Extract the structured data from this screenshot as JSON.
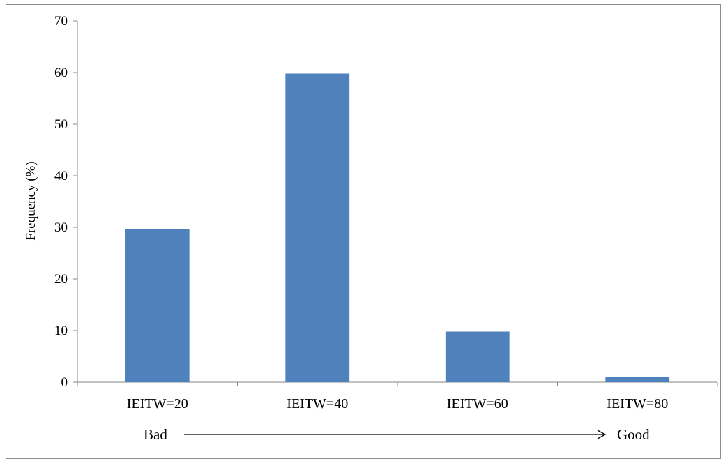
{
  "chart_data": {
    "type": "bar",
    "categories": [
      "IEITW=20",
      "IEITW=40",
      "IEITW=60",
      "IEITW=80"
    ],
    "values": [
      29.6,
      59.8,
      9.8,
      1.0
    ],
    "title": "",
    "xlabel": "",
    "ylabel": "Frequency (%)",
    "ylim": [
      0,
      70
    ],
    "yticks": [
      0,
      10,
      20,
      30,
      40,
      50,
      60,
      70
    ],
    "grid": false,
    "legend": "none",
    "bar_color": "#4f81bd",
    "scale_annotation": {
      "left": "Bad",
      "right": "Good"
    }
  }
}
